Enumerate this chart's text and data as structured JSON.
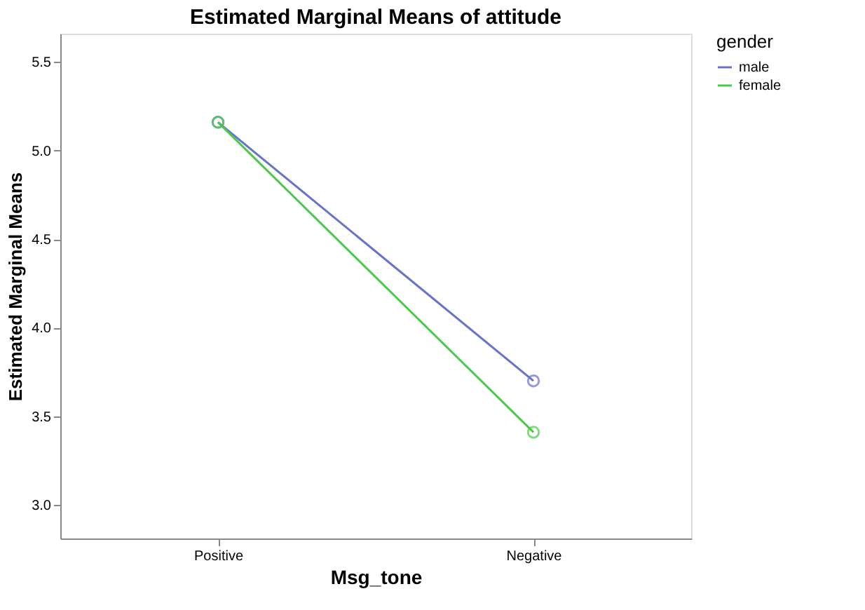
{
  "chart_data": {
    "type": "line",
    "title": "Estimated Marginal Means of attitude",
    "xlabel": "Msg_tone",
    "ylabel": "Estimated Marginal Means",
    "legend_title": "gender",
    "categories": [
      "Positive",
      "Negative"
    ],
    "series": [
      {
        "name": "male",
        "color": "#6673c8",
        "values": [
          5.16,
          3.7
        ]
      },
      {
        "name": "female",
        "color": "#4cc94c",
        "values": [
          5.16,
          3.41
        ]
      }
    ],
    "ylim": [
      2.81,
      5.66
    ],
    "yticks": [
      {
        "value": 3,
        "label": "3.0"
      },
      3.5,
      {
        "value": 4,
        "label": "4.0"
      },
      4.5,
      {
        "value": 5,
        "label": "5.0"
      },
      5.5
    ],
    "grid": false,
    "legend": "right",
    "marker": "circle",
    "line_style": "solid"
  }
}
